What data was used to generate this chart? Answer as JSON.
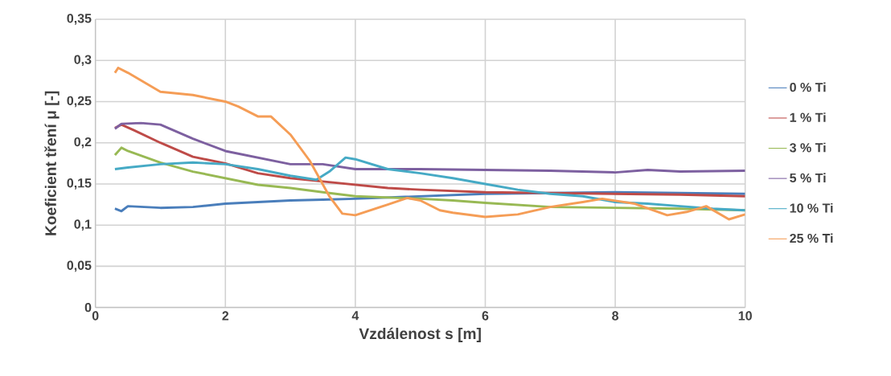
{
  "chart_data": {
    "type": "line",
    "xlabel": "Vzdálenost s [m]",
    "ylabel": "Koeficient tření  μ [-]",
    "xlim": [
      0,
      10
    ],
    "ylim": [
      0,
      0.35
    ],
    "xticks": [
      0,
      2,
      4,
      6,
      8,
      10
    ],
    "yticks": [
      0,
      {
        "value": 0.05,
        "label": "0,05"
      },
      {
        "value": 0.1,
        "label": "0,1"
      },
      {
        "value": 0.15,
        "label": "0,15"
      },
      {
        "value": 0.2,
        "label": "0,2"
      },
      {
        "value": 0.25,
        "label": "0,25"
      },
      {
        "value": 0.3,
        "label": "0,3"
      },
      {
        "value": 0.35,
        "label": "0,35"
      }
    ],
    "grid": true,
    "legend": "right",
    "marker": "none",
    "line_style": "solid",
    "series": [
      {
        "name": "0 % Ti",
        "color": "#4a7ebb",
        "x": [
          0.3,
          0.4,
          0.5,
          1,
          1.5,
          2,
          2.5,
          3,
          3.5,
          4,
          5,
          6,
          7,
          8,
          9,
          10
        ],
        "values": [
          0.12,
          0.117,
          0.123,
          0.121,
          0.122,
          0.126,
          0.128,
          0.13,
          0.131,
          0.132,
          0.135,
          0.138,
          0.139,
          0.14,
          0.139,
          0.138
        ]
      },
      {
        "name": "1 % Ti",
        "color": "#be4b48",
        "x": [
          0.3,
          0.4,
          0.6,
          1,
          1.5,
          2,
          2.5,
          3,
          3.5,
          4,
          4.5,
          5,
          6,
          7,
          8,
          9,
          10
        ],
        "values": [
          0.218,
          0.222,
          0.215,
          0.2,
          0.183,
          0.175,
          0.163,
          0.157,
          0.153,
          0.149,
          0.145,
          0.143,
          0.14,
          0.139,
          0.138,
          0.137,
          0.135
        ]
      },
      {
        "name": "3 % Ti",
        "color": "#98b954",
        "x": [
          0.3,
          0.4,
          0.5,
          1,
          1.5,
          2,
          2.5,
          3,
          3.5,
          4,
          5,
          5.5,
          6,
          7,
          8,
          9,
          10
        ],
        "values": [
          0.185,
          0.194,
          0.19,
          0.176,
          0.165,
          0.157,
          0.149,
          0.145,
          0.14,
          0.135,
          0.132,
          0.13,
          0.127,
          0.122,
          0.121,
          0.12,
          0.118
        ]
      },
      {
        "name": "5 % Ti",
        "color": "#7d60a0",
        "x": [
          0.3,
          0.4,
          0.7,
          1,
          1.5,
          2,
          2.5,
          3,
          3.5,
          4,
          4.5,
          5,
          6,
          7,
          8,
          8.5,
          9,
          10
        ],
        "values": [
          0.217,
          0.223,
          0.224,
          0.222,
          0.205,
          0.19,
          0.182,
          0.174,
          0.174,
          0.168,
          0.168,
          0.168,
          0.167,
          0.166,
          0.164,
          0.167,
          0.165,
          0.166
        ]
      },
      {
        "name": "10 % Ti",
        "color": "#46aac5",
        "x": [
          0.3,
          0.5,
          1,
          1.5,
          2,
          2.5,
          3,
          3.4,
          3.6,
          3.85,
          4,
          4.5,
          5,
          5.5,
          6,
          6.5,
          7,
          7.5,
          8,
          8.5,
          9,
          9.5,
          10
        ],
        "values": [
          0.168,
          0.17,
          0.174,
          0.176,
          0.174,
          0.168,
          0.16,
          0.155,
          0.165,
          0.182,
          0.18,
          0.168,
          0.163,
          0.157,
          0.15,
          0.143,
          0.138,
          0.135,
          0.128,
          0.126,
          0.123,
          0.12,
          0.118
        ]
      },
      {
        "name": "25 % Ti",
        "color": "#f59d56",
        "x": [
          0.3,
          0.35,
          0.5,
          1,
          1.5,
          2,
          2.2,
          2.5,
          2.7,
          3,
          3.3,
          3.6,
          3.8,
          4,
          4.5,
          4.8,
          5,
          5.3,
          5.5,
          6,
          6.5,
          7,
          7.5,
          7.8,
          8.3,
          8.8,
          9.1,
          9.4,
          9.75,
          10
        ],
        "values": [
          0.285,
          0.291,
          0.285,
          0.262,
          0.258,
          0.25,
          0.244,
          0.232,
          0.232,
          0.21,
          0.178,
          0.135,
          0.114,
          0.112,
          0.125,
          0.133,
          0.13,
          0.118,
          0.115,
          0.11,
          0.113,
          0.122,
          0.128,
          0.132,
          0.126,
          0.112,
          0.116,
          0.123,
          0.107,
          0.113
        ]
      }
    ]
  }
}
